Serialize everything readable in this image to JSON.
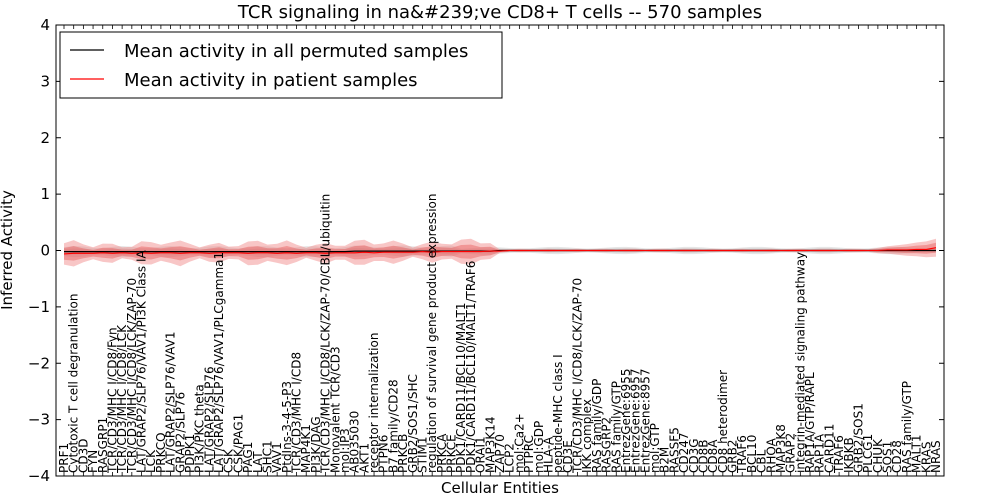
{
  "chart_data": {
    "type": "line",
    "title": "TCR signaling in na&#239;ve CD8+ T cells -- 570 samples",
    "xlabel": "Cellular Entities",
    "ylabel": "Inferred Activity",
    "ylim": [
      -4,
      4
    ],
    "yticks": [
      4,
      3,
      2,
      1,
      0,
      -1,
      -2,
      -3,
      -4
    ],
    "ytick_labels": [
      "4",
      "3",
      "2",
      "1",
      "0",
      "−1",
      "−2",
      "−3",
      "−4"
    ],
    "legend_position": "top-left",
    "categories": [
      "PRF1",
      "Cytotoxic T cell degranulation",
      "CD3D",
      "FYN",
      "RASGRP1",
      "TCR/CD3/MHC I/CD8/Fyn",
      "TCR/CD3/MHC I/CD8/LCK",
      "TCR/CD3/MHC I/CD8/LCK/ZAP-70",
      "LAT/GRAP2/SLP76/VAV1/PI3K Class IA",
      "LCK",
      "PRKCQ",
      "LAT/GRAP2/SLP76/VAV1",
      "GRAP2/SLP76",
      "PDPK1",
      "PI3K/PKC theta",
      "LAT/GRAP2/SLP76",
      "LAT/GRAP2/SLP76/VAV1/PLCgamma1",
      "CSK",
      "CSK/PAG1",
      "PAG1",
      "LAT",
      "SHC1",
      "VAV1",
      "PtdIns-3-4-5-P3",
      "TCR/CD3/MHC I/CD8",
      "MAP4K1",
      "PI3K/DAG",
      "TCR/CD3/MHC I/CD8/LCK/ZAP-70/CBL/ubiquitin",
      "Monovalent TCR/CD3",
      "mol:IP3",
      "AB035030",
      "AKT1",
      "receptor internalization",
      "PTPN6",
      "B7 family/CD28",
      "PRKCB",
      "GRB2/SOS1/SHC",
      "STIM1",
      "regulation of survival gene product expression",
      "PRKCA",
      "PRKCE",
      "PDK1/CARD11/BCL10/MALT1",
      "PDK1/CARD11/BCL10/MALT1/TRAF6",
      "ORAI1",
      "MAP3K14",
      "ZAP70",
      "LCP2",
      "mol:Ca2+",
      "PTPRC",
      "mol:GDP",
      "HLA-A",
      "peptide-MHC class I",
      "CD3E",
      "TCR/CD3/MHC I/CD8/LCK/ZAP-70",
      "IKK complex",
      "RAS family/GDP",
      "RASGRP2",
      "RAS family/GTP",
      "EntrezGene:6955",
      "EntrezGene:6957",
      "EntrezGene:8957",
      "mol:GTP",
      "B2M",
      "RASSF5",
      "CD247",
      "CD3G",
      "CD8B",
      "CD8A",
      "CD8 heterodimer",
      "GRB2",
      "TRAF6",
      "BCL10",
      "CBL",
      "RHOA",
      "MAP3K8",
      "GRAP2",
      "integrin-mediated signaling pathway",
      "RAP1A/GTP/RAPL",
      "RAP1A",
      "CARD11",
      "TRAF6",
      "IKBKB",
      "GRB2/SOS1",
      "PLCG1",
      "CHUK",
      "SOS1",
      "CD28",
      "RAS family/GTP",
      "MALT1",
      "KRAS",
      "NRAS"
    ],
    "series": [
      {
        "name": "Mean activity in all permuted samples",
        "color": "#000000",
        "values": [
          -0.02,
          -0.02,
          -0.02,
          -0.02,
          -0.02,
          -0.02,
          -0.02,
          -0.02,
          -0.02,
          -0.02,
          -0.02,
          -0.02,
          -0.02,
          -0.02,
          -0.02,
          -0.02,
          -0.02,
          -0.02,
          -0.02,
          -0.02,
          -0.02,
          -0.02,
          -0.02,
          -0.02,
          -0.02,
          -0.02,
          -0.02,
          -0.02,
          -0.02,
          -0.02,
          -0.01,
          -0.01,
          -0.01,
          -0.01,
          -0.01,
          -0.01,
          -0.01,
          -0.01,
          -0.01,
          -0.01,
          -0.01,
          -0.01,
          -0.01,
          -0.01,
          -0.01,
          0,
          0,
          0,
          0,
          0,
          0,
          0,
          0,
          0,
          0,
          0,
          0,
          0,
          0,
          0,
          0,
          0,
          0,
          0,
          0,
          0,
          0,
          0,
          0,
          0,
          0,
          0,
          0,
          0,
          0,
          0,
          0,
          0,
          0,
          0,
          0,
          0,
          0,
          0,
          0,
          0,
          0,
          0,
          0,
          0,
          0
        ]
      },
      {
        "name": "Mean activity in patient samples",
        "color": "#ff0000",
        "values": [
          -0.06,
          -0.05,
          -0.05,
          -0.05,
          -0.04,
          -0.05,
          -0.04,
          -0.05,
          -0.04,
          -0.05,
          -0.04,
          -0.04,
          -0.05,
          -0.04,
          -0.04,
          -0.05,
          -0.04,
          -0.04,
          -0.04,
          -0.05,
          -0.04,
          -0.04,
          -0.05,
          -0.04,
          -0.05,
          -0.04,
          -0.04,
          -0.05,
          -0.04,
          -0.04,
          -0.04,
          -0.03,
          -0.04,
          -0.03,
          -0.03,
          -0.03,
          -0.03,
          -0.02,
          -0.03,
          -0.02,
          -0.02,
          -0.02,
          -0.02,
          -0.02,
          -0.01,
          -0.01,
          0,
          0,
          0,
          0,
          0,
          0,
          0,
          0,
          0,
          0,
          0,
          0,
          0,
          0,
          0,
          0,
          0,
          0,
          0,
          0,
          0,
          0,
          0,
          0,
          0,
          0,
          0,
          0,
          0,
          0,
          0,
          0,
          0,
          0,
          0,
          0,
          0,
          0,
          0,
          0.01,
          0.01,
          0.01,
          0.02,
          0.02,
          0.05
        ]
      }
    ]
  }
}
